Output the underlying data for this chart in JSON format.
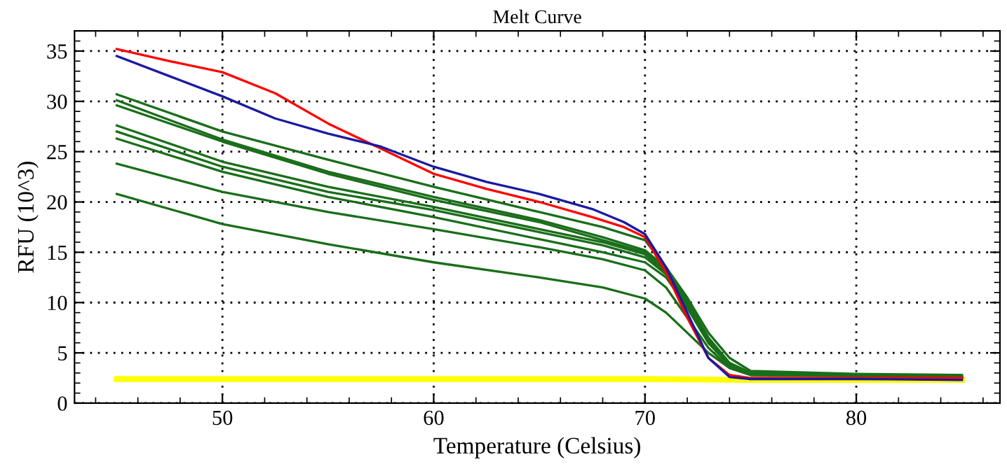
{
  "chart_data": {
    "type": "line",
    "title": "Melt Curve",
    "xlabel": "Temperature (Celsius)",
    "ylabel": "RFU (10^3)",
    "xlim": [
      43,
      86.8
    ],
    "xticks": [
      50,
      60,
      70,
      80
    ],
    "ylim": [
      0,
      37
    ],
    "yticks": [
      0,
      5,
      10,
      15,
      20,
      25,
      30,
      35
    ],
    "grid": true,
    "line_style": "solid",
    "marker": "none",
    "legend": false,
    "series": [
      {
        "color": "#ffff00",
        "x": [
          45,
          55,
          65,
          70,
          75,
          85
        ],
        "values": [
          2.4,
          2.4,
          2.4,
          2.4,
          2.3,
          2.3
        ]
      },
      {
        "color": "#1a6e1a",
        "x": [
          45,
          50,
          55,
          60,
          65,
          68,
          70,
          71,
          72,
          73,
          74,
          75,
          80,
          85
        ],
        "values": [
          30.7,
          27.0,
          24.2,
          21.5,
          19.0,
          17.5,
          16.2,
          13.5,
          9.5,
          6.0,
          3.8,
          3.0,
          2.8,
          2.7
        ]
      },
      {
        "color": "#1a6e1a",
        "x": [
          45,
          50,
          55,
          60,
          65,
          68,
          70,
          71,
          72,
          73,
          74,
          75,
          80,
          85
        ],
        "values": [
          30.1,
          26.2,
          23.0,
          20.5,
          18.2,
          16.5,
          15.2,
          13.5,
          10.5,
          7.0,
          4.5,
          3.2,
          2.9,
          2.8
        ]
      },
      {
        "color": "#1a6e1a",
        "x": [
          45,
          50,
          55,
          60,
          65,
          68,
          70,
          71,
          72,
          73,
          74,
          75,
          80,
          85
        ],
        "values": [
          29.6,
          26.0,
          22.8,
          20.2,
          18.0,
          16.2,
          15.0,
          13.2,
          10.2,
          6.5,
          4.0,
          3.0,
          2.7,
          2.5
        ]
      },
      {
        "color": "#1a6e1a",
        "x": [
          45,
          50,
          55,
          60,
          65,
          68,
          70,
          71,
          72,
          73,
          74,
          75,
          80,
          85
        ],
        "values": [
          27.6,
          24.0,
          21.5,
          19.5,
          17.3,
          16.0,
          14.8,
          13.0,
          10.0,
          6.5,
          4.0,
          3.0,
          2.7,
          2.6
        ]
      },
      {
        "color": "#1a6e1a",
        "x": [
          45,
          50,
          55,
          60,
          65,
          68,
          70,
          71,
          72,
          73,
          74,
          75,
          80,
          85
        ],
        "values": [
          27.0,
          23.5,
          21.0,
          19.2,
          17.0,
          15.7,
          14.5,
          12.8,
          9.8,
          6.2,
          3.8,
          2.9,
          2.7,
          2.6
        ]
      },
      {
        "color": "#1a6e1a",
        "x": [
          45,
          50,
          55,
          60,
          65,
          68,
          70,
          71,
          72,
          73,
          74,
          75,
          80,
          85
        ],
        "values": [
          26.3,
          23.0,
          20.5,
          18.5,
          16.3,
          15.0,
          14.0,
          12.5,
          9.5,
          6.0,
          3.7,
          2.9,
          2.7,
          2.6
        ]
      },
      {
        "color": "#1a6e1a",
        "x": [
          45,
          50,
          55,
          60,
          65,
          68,
          70,
          71,
          72,
          73,
          74,
          75,
          80,
          85
        ],
        "values": [
          23.8,
          21.0,
          19.0,
          17.3,
          15.5,
          14.3,
          13.2,
          11.5,
          8.5,
          5.5,
          3.5,
          2.8,
          2.7,
          2.6
        ]
      },
      {
        "color": "#1a6e1a",
        "x": [
          45,
          50,
          55,
          60,
          65,
          68,
          70,
          71,
          72,
          73,
          74,
          75,
          80,
          85
        ],
        "values": [
          20.8,
          17.8,
          15.8,
          14.0,
          12.5,
          11.5,
          10.4,
          9.0,
          7.0,
          5.0,
          3.5,
          2.8,
          2.7,
          2.6
        ]
      },
      {
        "color": "#ff0000",
        "x": [
          45,
          47.5,
          50,
          52.5,
          55,
          57.5,
          60,
          62.5,
          65,
          67.5,
          69,
          70,
          71,
          72,
          73,
          74,
          75,
          80,
          85
        ],
        "values": [
          35.2,
          34.0,
          32.9,
          30.8,
          27.8,
          25.3,
          22.8,
          21.3,
          20.0,
          18.5,
          17.5,
          16.5,
          13.0,
          8.5,
          4.5,
          2.8,
          2.5,
          2.5,
          2.5
        ]
      },
      {
        "color": "#1a1aa0",
        "x": [
          45,
          47.5,
          50,
          52.5,
          55,
          57.5,
          60,
          62.5,
          65,
          67.5,
          69,
          70,
          71,
          72,
          73,
          74,
          75,
          80,
          85
        ],
        "values": [
          34.5,
          32.5,
          30.5,
          28.3,
          26.8,
          25.5,
          23.5,
          22.0,
          20.8,
          19.3,
          18.0,
          16.8,
          13.5,
          9.0,
          4.5,
          2.6,
          2.4,
          2.4,
          2.3
        ]
      }
    ]
  }
}
